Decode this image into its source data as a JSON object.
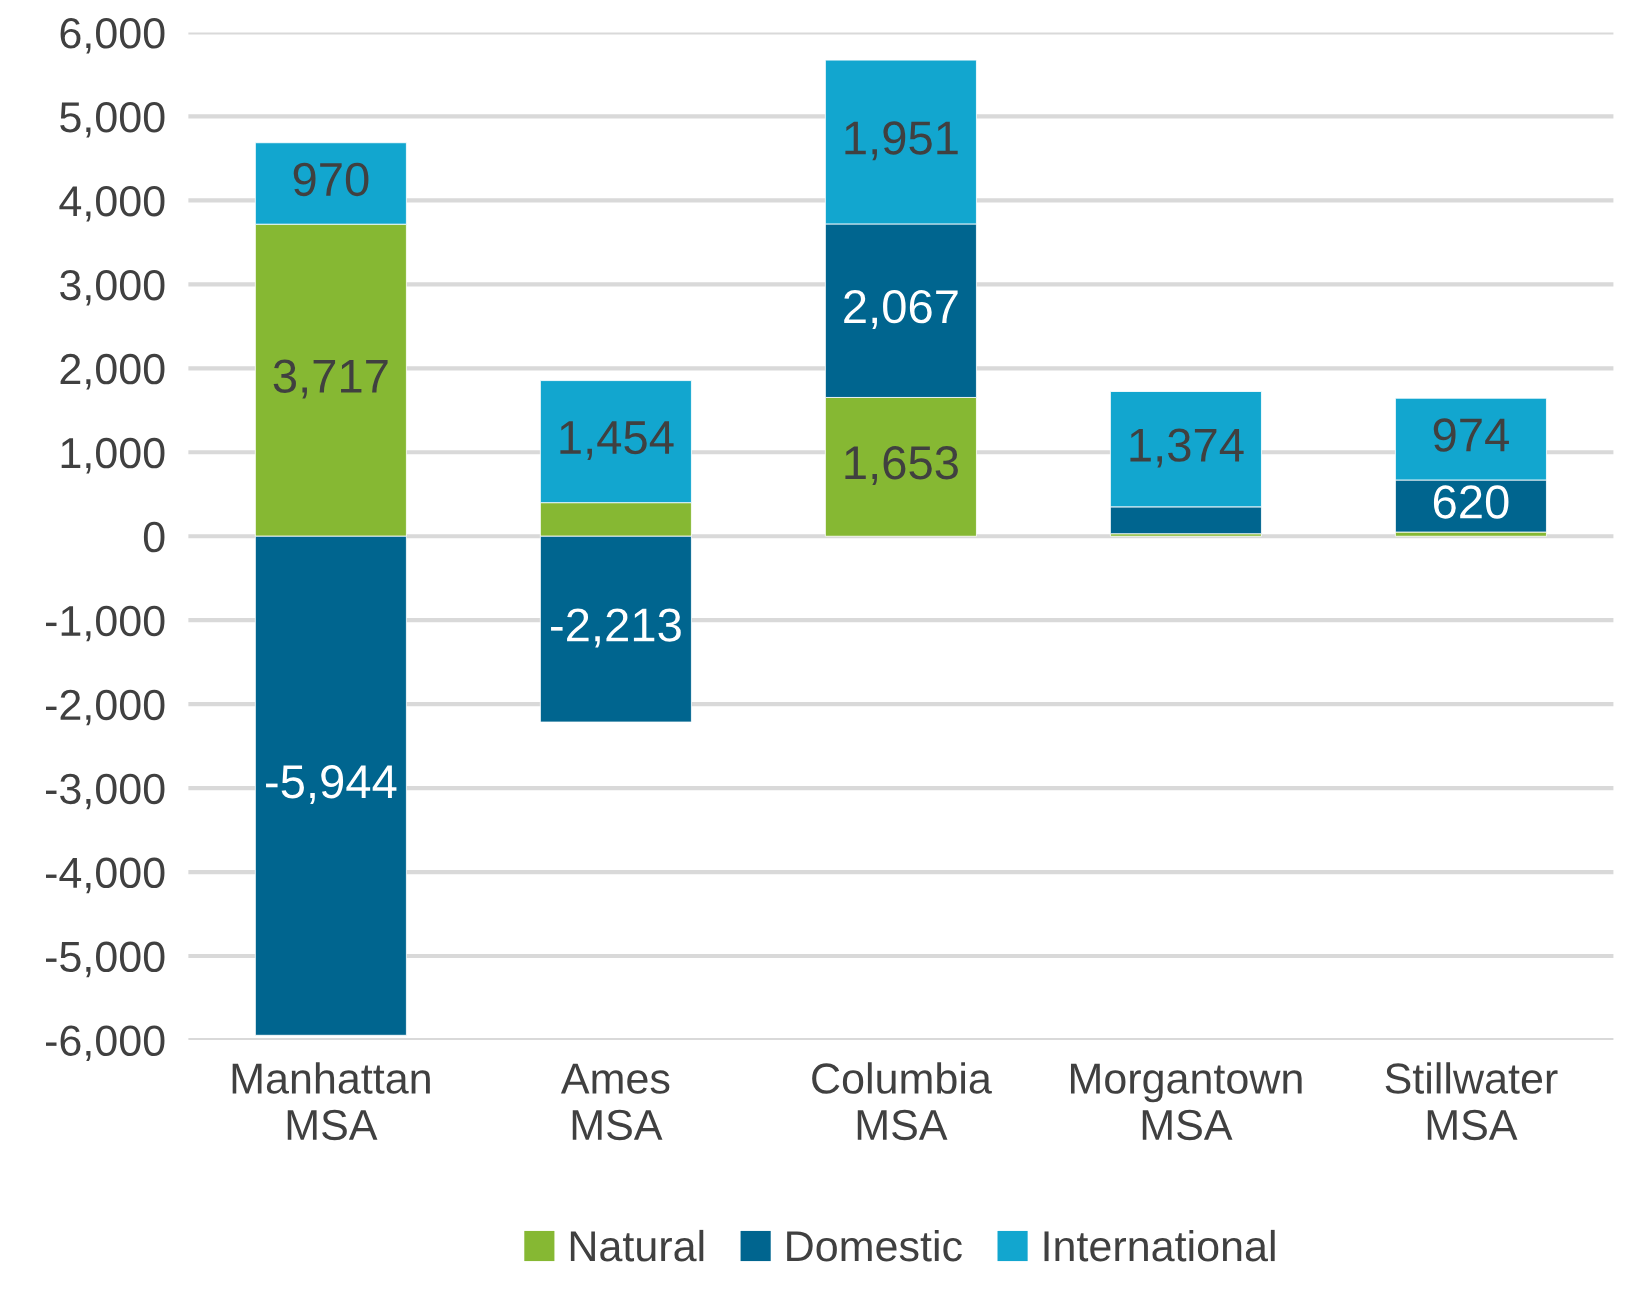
{
  "chart_data": {
    "type": "bar",
    "stacked": true,
    "categories": [
      "Manhattan\nMSA",
      "Ames\nMSA",
      "Columbia\nMSA",
      "Morgantown\nMSA",
      "Stillwater\nMSA"
    ],
    "series": [
      {
        "name": "Natural",
        "color": "#86b833",
        "values": [
          3717,
          400,
          1653,
          30,
          50
        ],
        "value_labels": [
          "3,717",
          null,
          "1,653",
          null,
          null
        ]
      },
      {
        "name": "Domestic",
        "color": "#00658f",
        "values": [
          -5944,
          -2213,
          2067,
          320,
          620
        ],
        "value_labels": [
          "-5,944",
          "-2,213",
          "2,067",
          null,
          "620"
        ]
      },
      {
        "name": "International",
        "color": "#12a6cf",
        "values": [
          970,
          1454,
          1951,
          1374,
          974
        ],
        "value_labels": [
          "970",
          "1,454",
          "1,951",
          "1,374",
          "974"
        ]
      }
    ],
    "ylim": [
      -6000,
      6000
    ],
    "yticks": [
      {
        "value": -6000,
        "label": "-6,000"
      },
      {
        "value": -5000,
        "label": "-5,000"
      },
      {
        "value": -4000,
        "label": "-4,000"
      },
      {
        "value": -3000,
        "label": "-3,000"
      },
      {
        "value": -2000,
        "label": "-2,000"
      },
      {
        "value": -1000,
        "label": "-1,000"
      },
      0,
      {
        "value": 1000,
        "label": "1,000"
      },
      {
        "value": 2000,
        "label": "2,000"
      },
      {
        "value": 3000,
        "label": "3,000"
      },
      {
        "value": 4000,
        "label": "4,000"
      },
      {
        "value": 5000,
        "label": "5,000"
      },
      {
        "value": 6000,
        "label": "6,000"
      }
    ],
    "grid": "y",
    "legend": "bottom"
  }
}
